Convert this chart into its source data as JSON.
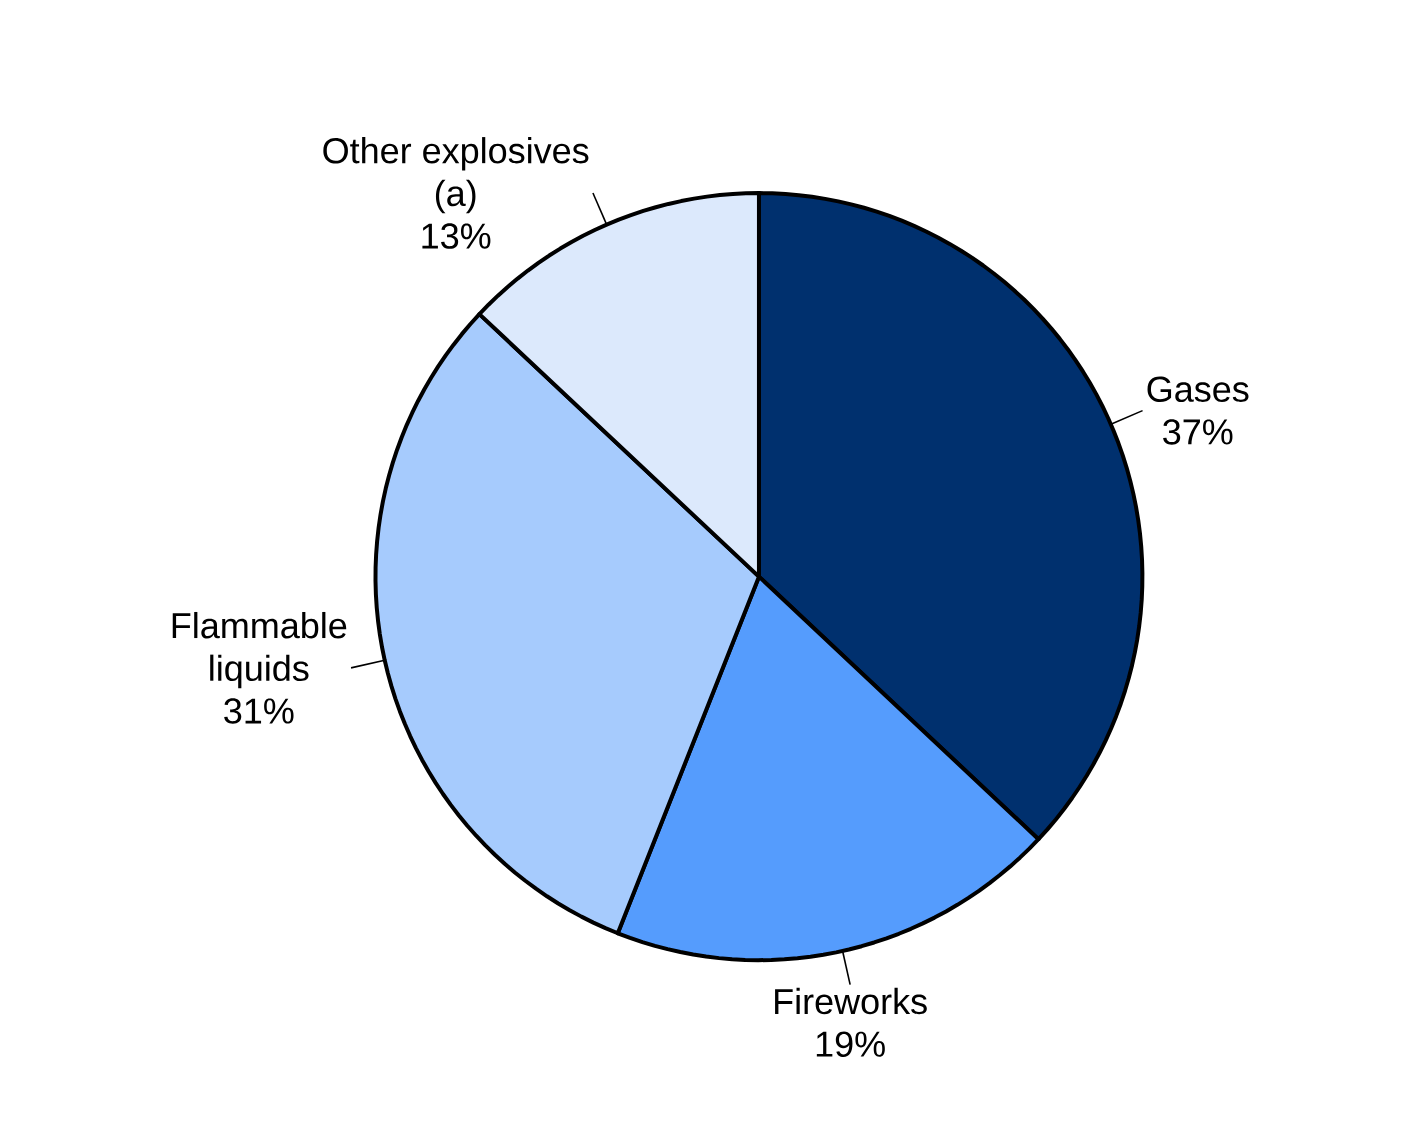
{
  "chart_data": {
    "type": "pie",
    "categories": [
      "Gases",
      "Fireworks",
      "Flammable liquids",
      "Other explosives (a)"
    ],
    "values": [
      37,
      19,
      31,
      13
    ],
    "colors": [
      "#00306e",
      "#559cfd",
      "#a6cbfd",
      "#dce9fc"
    ],
    "value_labels": [
      "37%",
      "19%",
      "31%",
      "13%"
    ]
  }
}
